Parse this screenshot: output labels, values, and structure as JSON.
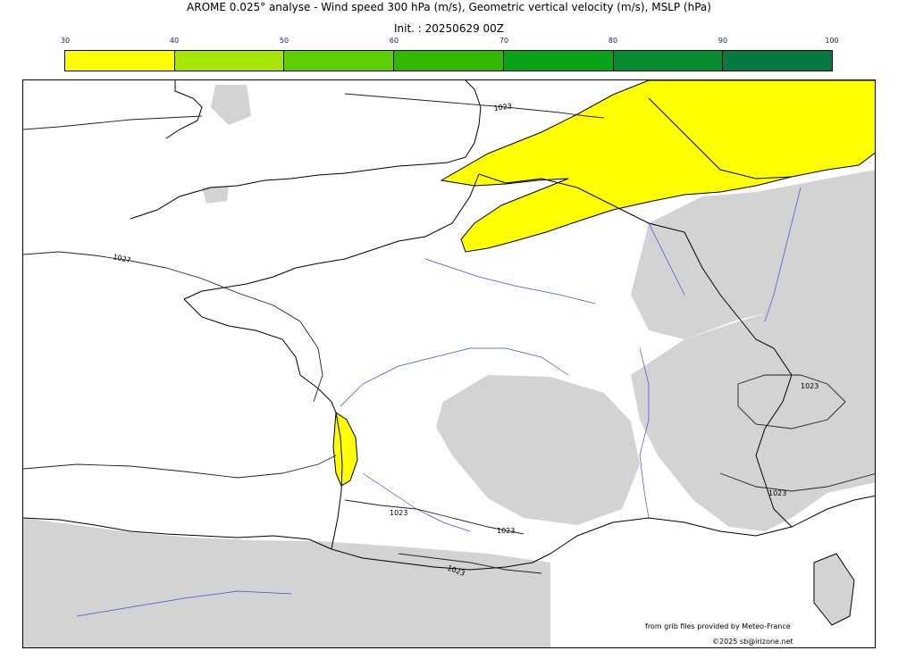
{
  "header": {
    "title": "AROME 0.025° analyse - Wind speed 300 hPa (m/s), Geometric vertical velocity (m/s), MSLP (hPa)",
    "init": "Init. : 20250629 00Z"
  },
  "colorbar": {
    "ticks": [
      "30",
      "40",
      "50",
      "60",
      "70",
      "80",
      "90",
      "100"
    ],
    "colors": [
      "#ffff00",
      "#a6e600",
      "#5ccf00",
      "#33b800",
      "#0aa218",
      "#078a30",
      "#067a40",
      "#0b7248"
    ]
  },
  "map": {
    "wind_zone_color": "#ffff00",
    "terrain_color": "#d3d3d3",
    "isobar_labels": [
      "1023",
      "1027",
      "1023",
      "1023",
      "1023",
      "1023",
      "1023"
    ]
  },
  "footer": {
    "credit": "from grib files provided by Meteo-France",
    "copyright": "©2025 sb@irizone.net"
  }
}
